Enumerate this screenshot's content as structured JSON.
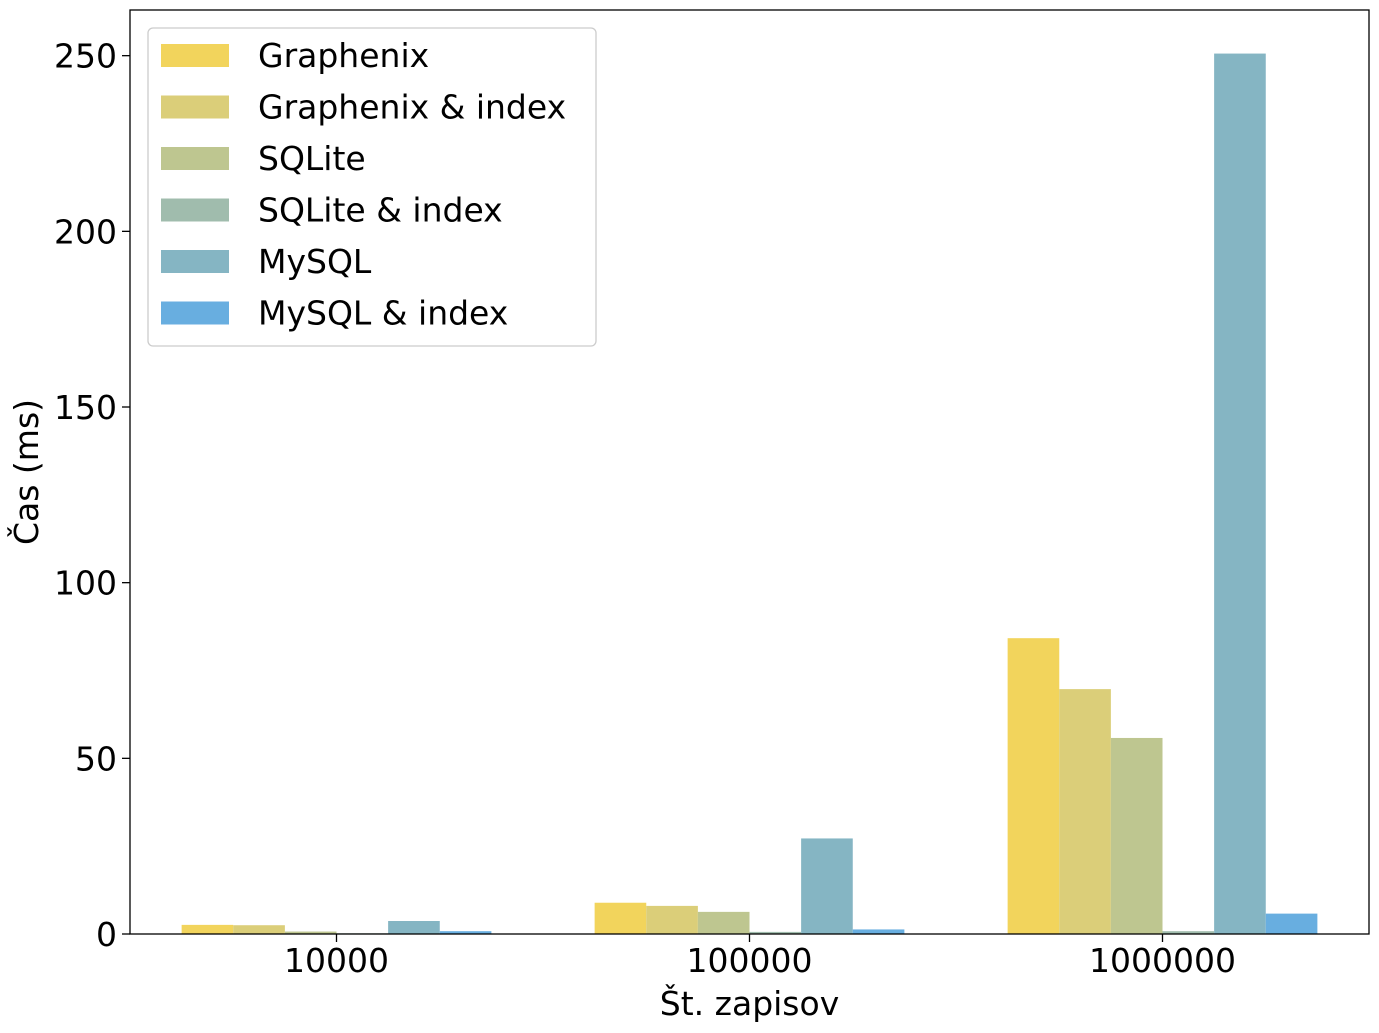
{
  "chart_data": {
    "type": "bar",
    "title": "",
    "xlabel": "Št. zapisov",
    "ylabel": "Čas (ms)",
    "categories": [
      "10000",
      "100000",
      "1000000"
    ],
    "ylim": [
      0,
      263
    ],
    "yticks": [
      0,
      50,
      100,
      150,
      200,
      250
    ],
    "grid": false,
    "legend_position": "top-left",
    "series": [
      {
        "name": "Graphenix",
        "color": "#f2d45c",
        "values": [
          2.6,
          8.9,
          84.2
        ]
      },
      {
        "name": "Graphenix & index",
        "color": "#dbce79",
        "values": [
          2.5,
          8.0,
          69.7
        ]
      },
      {
        "name": "SQLite",
        "color": "#bec690",
        "values": [
          0.7,
          6.3,
          55.8
        ]
      },
      {
        "name": "SQLite & index",
        "color": "#a0bcad",
        "values": [
          0.2,
          0.6,
          0.8
        ]
      },
      {
        "name": "MySQL",
        "color": "#85b5c3",
        "values": [
          3.7,
          27.2,
          250.6
        ]
      },
      {
        "name": "MySQL & index",
        "color": "#68aee0",
        "values": [
          0.8,
          1.3,
          5.8
        ]
      }
    ]
  }
}
